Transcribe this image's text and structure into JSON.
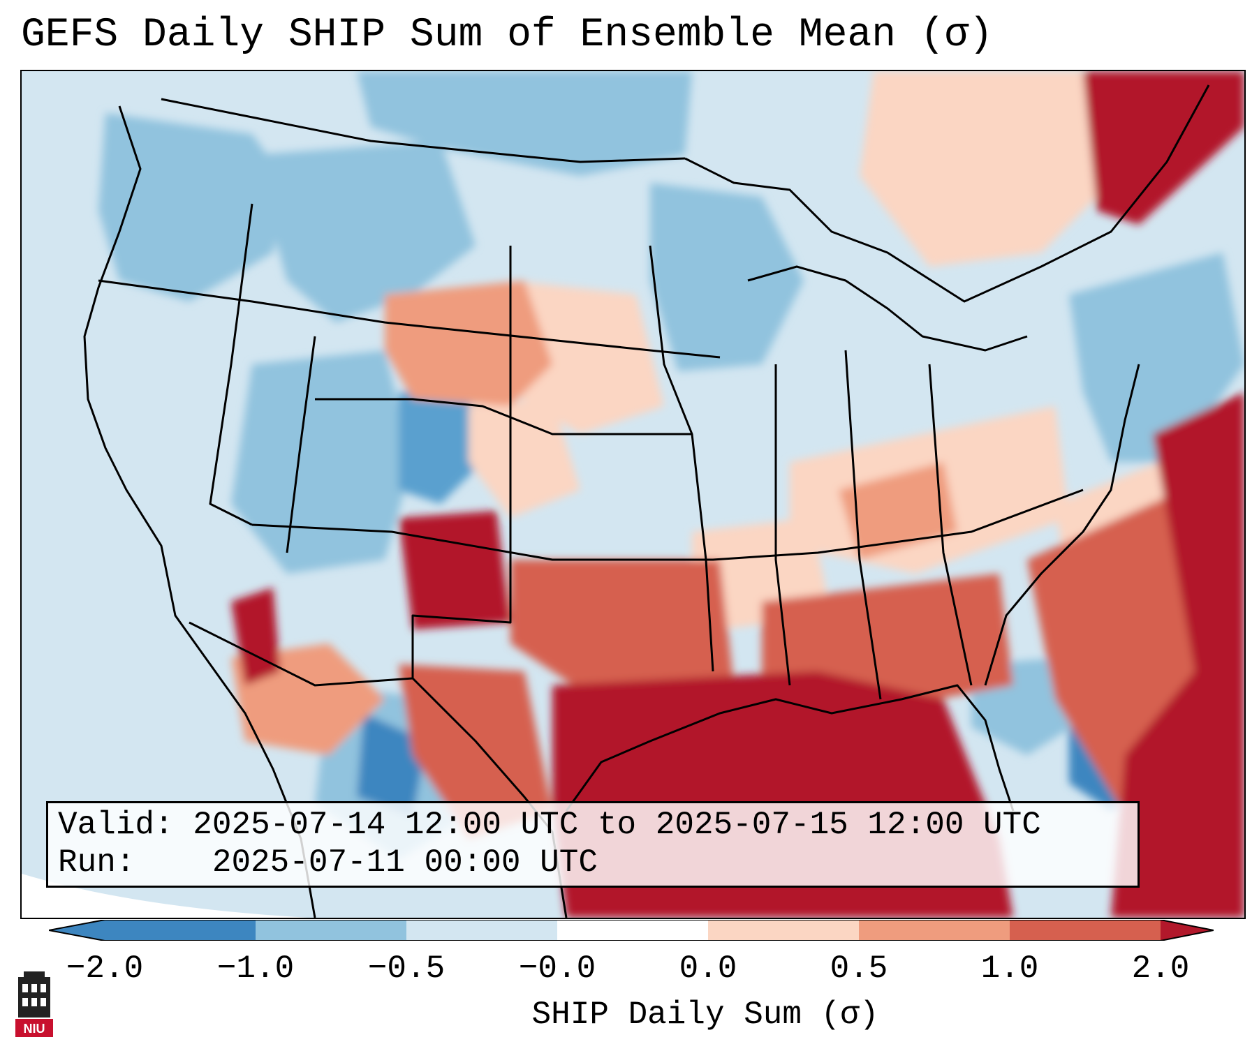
{
  "title": "GEFS Daily SHIP Sum of Ensemble Mean (σ)",
  "info": {
    "valid_label": "Valid:",
    "valid_value": "2025-07-14 12:00 UTC to 2025-07-15 12:00 UTC",
    "run_label": "Run:",
    "run_value": "2025-07-11 00:00 UTC"
  },
  "colorbar": {
    "label": "SHIP Daily Sum (σ)",
    "ticks": [
      "−2.0",
      "−1.0",
      "−0.5",
      "−0.0",
      "0.0",
      "0.5",
      "1.0",
      "2.0"
    ],
    "colors": [
      "#3d86c0",
      "#91c3de",
      "#d3e6f1",
      "#ffffff",
      "#fbd6c3",
      "#ef9c7e",
      "#d6604f",
      "#b2182b"
    ]
  },
  "logo": {
    "text": "NIU",
    "icon": "niu-tower-icon",
    "color": "#c8102e"
  },
  "map": {
    "regions": [
      {
        "name": "pacific-northwest",
        "category": "-1.0 to -0.5"
      },
      {
        "name": "northern-rockies",
        "category": "-1.0 to -0.5"
      },
      {
        "name": "wyoming-south-dakota",
        "category": "0.5 to 1.0"
      },
      {
        "name": "great-lakes",
        "category": "-0.5 to -0.0"
      },
      {
        "name": "new-mexico-texas",
        "category": "above 2.0"
      },
      {
        "name": "gulf-of-mexico",
        "category": "above 2.0"
      },
      {
        "name": "southeast",
        "category": "1.0 to 2.0"
      },
      {
        "name": "atlantic-offshore",
        "category": "above 2.0"
      },
      {
        "name": "mexico-interior",
        "category": "-1.0 to -0.5"
      },
      {
        "name": "bahamas",
        "category": "-2.0 to -1.0"
      }
    ]
  }
}
